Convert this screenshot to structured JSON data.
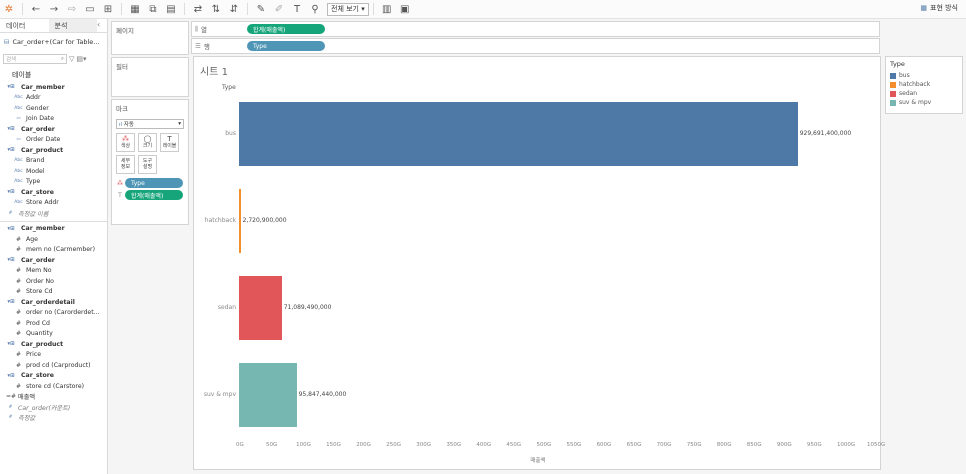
{
  "toolbar": {
    "fit_select": "전체 보기",
    "show_me": "표현 방식"
  },
  "left_panel": {
    "tabs": [
      "데이터",
      "분석"
    ],
    "datasource": "Car_order+(Car for Table...",
    "search_placeholder": "검색",
    "tables_title": "테이블",
    "fields": [
      {
        "kind": "table",
        "label": "Car_member"
      },
      {
        "kind": "abc",
        "label": "Addr"
      },
      {
        "kind": "abc",
        "label": "Gender"
      },
      {
        "kind": "date",
        "label": "Join Date"
      },
      {
        "kind": "table",
        "label": "Car_order"
      },
      {
        "kind": "date",
        "label": "Order Date"
      },
      {
        "kind": "table",
        "label": "Car_product"
      },
      {
        "kind": "abc",
        "label": "Brand"
      },
      {
        "kind": "abc",
        "label": "Model"
      },
      {
        "kind": "abc",
        "label": "Type"
      },
      {
        "kind": "table",
        "label": "Car_store"
      },
      {
        "kind": "abc",
        "label": "Store Addr"
      },
      {
        "kind": "italic",
        "label": "측정값 이름"
      },
      {
        "kind": "divider",
        "label": ""
      },
      {
        "kind": "table",
        "label": "Car_member"
      },
      {
        "kind": "num",
        "label": "Age"
      },
      {
        "kind": "num",
        "label": "mem no (Carmember)"
      },
      {
        "kind": "table",
        "label": "Car_order"
      },
      {
        "kind": "num",
        "label": "Mem No"
      },
      {
        "kind": "num",
        "label": "Order No"
      },
      {
        "kind": "num",
        "label": "Store Cd"
      },
      {
        "kind": "table",
        "label": "Car_orderdetail"
      },
      {
        "kind": "num",
        "label": "order no (Carorderdet..."
      },
      {
        "kind": "num",
        "label": "Prod Cd"
      },
      {
        "kind": "num",
        "label": "Quantity"
      },
      {
        "kind": "table",
        "label": "Car_product"
      },
      {
        "kind": "num",
        "label": "Price"
      },
      {
        "kind": "num",
        "label": "prod cd (Carproduct)"
      },
      {
        "kind": "table",
        "label": "Car_store"
      },
      {
        "kind": "num",
        "label": "store cd (Carstore)"
      },
      {
        "kind": "calc",
        "label": "매출액"
      },
      {
        "kind": "italic",
        "label": "Car_order(카운트)"
      },
      {
        "kind": "italic",
        "label": "측정값"
      }
    ]
  },
  "shelves": {
    "pages": "페이지",
    "filters": "필터",
    "marks": "마크",
    "marks_type": "자동",
    "marks_buttons": [
      {
        "icon": "⁂",
        "label": "색상"
      },
      {
        "icon": "◯",
        "label": "크기"
      },
      {
        "icon": "T",
        "label": "레이블"
      },
      {
        "icon": "",
        "label": "세부\n정보"
      },
      {
        "icon": "",
        "label": "도구\n설명"
      }
    ],
    "mark_pills": [
      {
        "icon": "⁂",
        "label": "Type"
      },
      {
        "icon": "T",
        "label": "합계(매출액)"
      }
    ],
    "columns_label": "열",
    "columns_pill": "합계(매출액)",
    "rows_label": "행",
    "rows_pill": "Type"
  },
  "sheet": {
    "title": "시트 1",
    "row_header": "Type"
  },
  "chart_data": {
    "type": "bar",
    "orientation": "horizontal",
    "categories": [
      "bus",
      "hatchback",
      "sedan",
      "suv & mpv"
    ],
    "values": [
      929691400000,
      2720900000,
      71089490000,
      95847440000
    ],
    "value_labels": [
      "929,691,400,000",
      "2,720,900,000",
      "71,089,490,000",
      "95,847,440,000"
    ],
    "colors": [
      "#4e79a7",
      "#f28e2b",
      "#e15759",
      "#76b7b2"
    ],
    "xlabel": "매출액",
    "ylabel": "Type",
    "xlim": [
      0,
      1050000000000
    ],
    "x_ticks": [
      "0G",
      "50G",
      "100G",
      "150G",
      "200G",
      "250G",
      "300G",
      "350G",
      "400G",
      "450G",
      "500G",
      "550G",
      "600G",
      "650G",
      "700G",
      "750G",
      "800G",
      "850G",
      "900G",
      "950G",
      "1000G",
      "1050G"
    ]
  },
  "legend": {
    "title": "Type",
    "items": [
      {
        "label": "bus",
        "color": "#4e79a7"
      },
      {
        "label": "hatchback",
        "color": "#f28e2b"
      },
      {
        "label": "sedan",
        "color": "#e15759"
      },
      {
        "label": "suv & mpv",
        "color": "#76b7b2"
      }
    ]
  }
}
